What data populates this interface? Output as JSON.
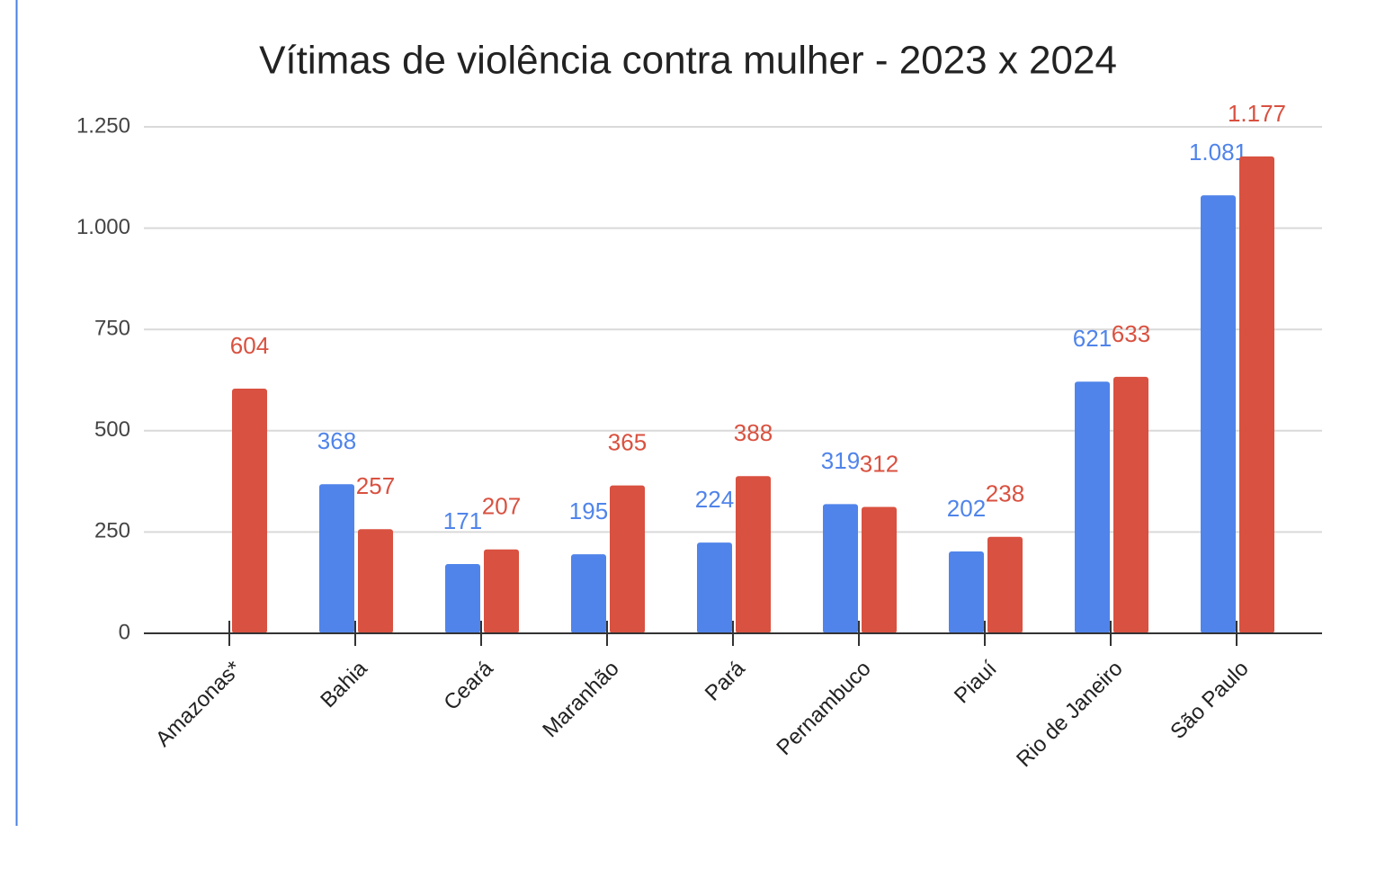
{
  "chart_data": {
    "type": "bar",
    "title": "Vítimas de violência contra mulher - 2023 x 2024",
    "categories": [
      "Amazonas*",
      "Bahia",
      "Ceará",
      "Maranhão",
      "Pará",
      "Pernambuco",
      "Piauí",
      "Rio de Janeiro",
      "São Paulo"
    ],
    "series": [
      {
        "color": "#5084ea",
        "values": [
          null,
          368,
          171,
          195,
          224,
          319,
          202,
          621,
          1081
        ],
        "value_labels": [
          null,
          "368",
          "171",
          "195",
          "224",
          "319",
          "202",
          "621",
          "1.081"
        ]
      },
      {
        "color": "#d95140",
        "values": [
          604,
          257,
          207,
          365,
          388,
          312,
          238,
          633,
          1177
        ],
        "value_labels": [
          "604",
          "257",
          "207",
          "365",
          "388",
          "312",
          "238",
          "633",
          "1.177"
        ]
      }
    ],
    "ylim": [
      0,
      1250
    ],
    "yticks": [
      0,
      250,
      500,
      750,
      {
        "value": 1000,
        "label": "1.000"
      },
      {
        "value": 1250,
        "label": "1.250"
      }
    ],
    "grid": true
  }
}
